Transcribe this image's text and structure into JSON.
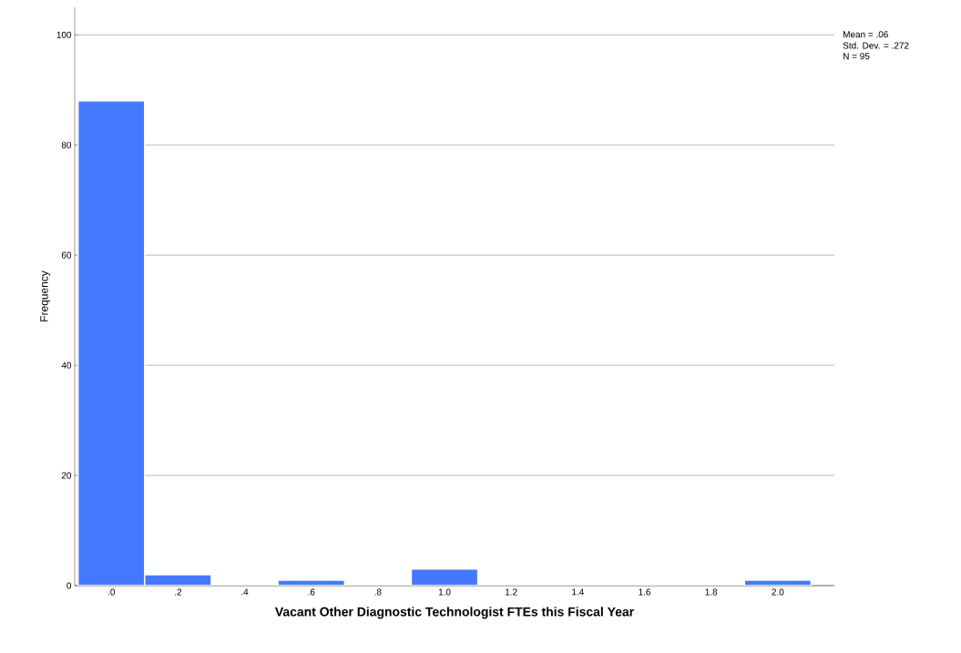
{
  "chart_data": {
    "type": "histogram",
    "xlabel": "Vacant Other Diagnostic Technologist FTEs this Fiscal Year",
    "ylabel": "Frequency",
    "bins": [
      -0.1,
      0.1,
      0.3,
      0.5,
      0.7,
      0.9,
      1.1,
      1.3,
      1.5,
      1.7,
      1.9,
      2.1
    ],
    "values": [
      88,
      2,
      0,
      1,
      0,
      3,
      0,
      0,
      0,
      0,
      1
    ],
    "color": "#4479ff",
    "xlim": [
      -0.11,
      2.17
    ],
    "ylim": [
      0,
      105
    ],
    "xticks": [
      {
        "value": 0,
        "label": ".0"
      },
      {
        "value": 0.2,
        "label": ".2"
      },
      {
        "value": 0.4,
        "label": ".4"
      },
      {
        "value": 0.6,
        "label": ".6"
      },
      {
        "value": 0.8,
        "label": ".8"
      },
      {
        "value": 1.0,
        "label": "1.0"
      },
      {
        "value": 1.2,
        "label": "1.2"
      },
      {
        "value": 1.4,
        "label": "1.4"
      },
      {
        "value": 1.6,
        "label": "1.6"
      },
      {
        "value": 1.8,
        "label": "1.8"
      },
      {
        "value": 2.0,
        "label": "2.0"
      }
    ],
    "yticks": [
      0,
      20,
      40,
      60,
      80,
      100
    ],
    "grid": "y",
    "annotations": [
      "Mean = .06",
      "Std. Dev. = .272",
      "N = 95"
    ]
  }
}
